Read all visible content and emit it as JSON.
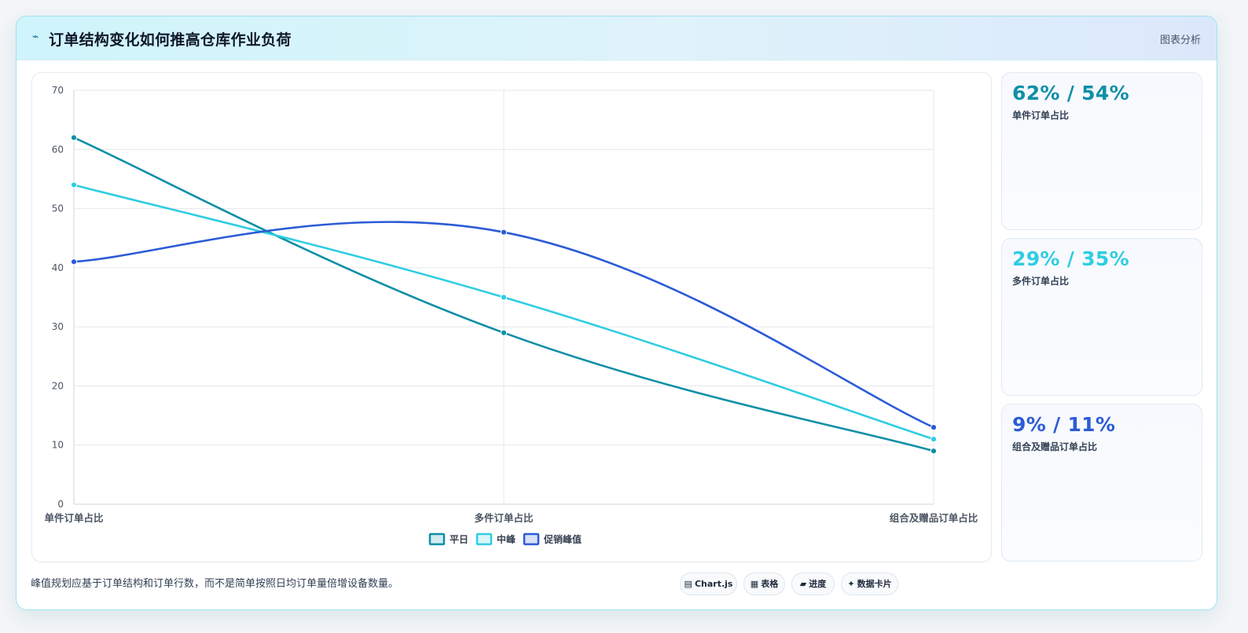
{
  "header": {
    "icon": "lightning-icon",
    "title": "订单结构变化如何推高仓库作业负荷",
    "tag": "图表分析"
  },
  "stats": [
    {
      "value": "62% / 54%",
      "label": "单件订单占比",
      "color": "#0e8fa6"
    },
    {
      "value": "29% / 35%",
      "label": "多件订单占比",
      "color": "#2fcde2"
    },
    {
      "value": "9% / 11%",
      "label": "组合及赠品订单占比",
      "color": "#2b5bd6"
    }
  ],
  "footnote": "峰值规划应基于订单结构和订单行数，而不是简单按照日均订单量倍增设备数量。",
  "chips": [
    {
      "icon": "▤",
      "label": "Chart.js"
    },
    {
      "icon": "▦",
      "label": "表格"
    },
    {
      "icon": "▰",
      "label": "进度"
    },
    {
      "icon": "✦",
      "label": "数据卡片"
    }
  ],
  "chart_data": {
    "type": "line",
    "categories": [
      "单件订单占比",
      "多件订单占比",
      "组合及赠品订单占比"
    ],
    "series": [
      {
        "name": "平日",
        "values": [
          62,
          29,
          9
        ],
        "color": "#0e8fa6"
      },
      {
        "name": "中峰",
        "values": [
          54,
          35,
          11
        ],
        "color": "#2fcde2"
      },
      {
        "name": "促销峰值",
        "values": [
          41,
          46,
          13
        ],
        "color": "#2b5bd6"
      }
    ],
    "ylim": [
      0,
      70
    ],
    "yticks": [
      0,
      10,
      20,
      30,
      40,
      50,
      60,
      70
    ],
    "grid": true,
    "legend": "bottom-center"
  }
}
